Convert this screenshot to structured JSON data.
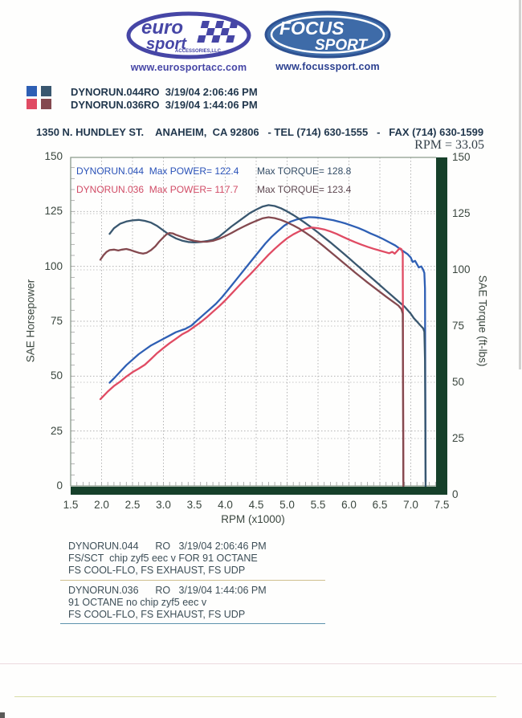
{
  "branding": {
    "eurosport": {
      "word1": "euro",
      "word2": "sport",
      "tagline": "ACCESSORIES,LLC",
      "website": "www.eurosportacc.com",
      "color": "#4646a6"
    },
    "focussport": {
      "word1": "FOCUS",
      "word2": "SPORT",
      "website": "www.focussport.com",
      "color": "#3e6ba8"
    }
  },
  "legend": [
    {
      "label": "DYNORUN.044RO  3/19/04 2:06:46 PM",
      "power_color": "#2e5fb4",
      "torque_color": "#39576f"
    },
    {
      "label": "DYNORUN.036RO  3/19/04 1:44:06 PM",
      "power_color": "#e04b63",
      "torque_color": "#84494f"
    }
  ],
  "address_line": "1350 N. HUNDLEY ST.    ANAHEIM,  CA 92806   - TEL (714) 630-1555   -   FAX (714) 630-1599",
  "rpm_readout": "RPM = 33.05",
  "chart_data": {
    "type": "line",
    "title": "",
    "x_axis": {
      "label": "RPM (x1000)",
      "min": 1.5,
      "max": 7.5
    },
    "y_axis_left": {
      "label": "SAE Horsepower",
      "min": 0,
      "max": 150
    },
    "y_axis_right": {
      "label": "SAE Torque (ft-lbs)",
      "min": 0,
      "max": 150
    },
    "x_ticks": [
      "1.5",
      "2.0",
      "2.5",
      "3.0",
      "3.5",
      "4.0",
      "4.5",
      "5.0",
      "5.5",
      "6.0",
      "6.5",
      "7.0",
      "7.5"
    ],
    "y_ticks": [
      "0",
      "25",
      "50",
      "75",
      "100",
      "125",
      "150"
    ],
    "grid": "dotted",
    "annotations": {
      "run1_power": "DYNORUN.044  Max POWER= 122.4",
      "run1_torque": "Max TORQUE= 128.8",
      "run2_power": "DYNORUN.036  Max POWER= 117.7",
      "run2_torque": "Max TORQUE= 123.4"
    },
    "max_values": {
      "run1_max_power": 122.4,
      "run1_max_torque": 128.8,
      "run2_max_power": 117.7,
      "run2_max_torque": 123.4
    },
    "series": [
      {
        "name": "DYNORUN.044 Power (SAE HP)",
        "axis": "hp",
        "color": "#2e5fb4",
        "points": [
          [
            2.13,
            47
          ],
          [
            2.2,
            49
          ],
          [
            2.3,
            52
          ],
          [
            2.4,
            55
          ],
          [
            2.5,
            57.5
          ],
          [
            2.6,
            60
          ],
          [
            2.7,
            62
          ],
          [
            2.8,
            64
          ],
          [
            2.9,
            65.5
          ],
          [
            3.0,
            67
          ],
          [
            3.1,
            68.5
          ],
          [
            3.2,
            70
          ],
          [
            3.3,
            71
          ],
          [
            3.35,
            71.5
          ],
          [
            3.45,
            73
          ],
          [
            3.55,
            75.5
          ],
          [
            3.65,
            78
          ],
          [
            3.75,
            80.5
          ],
          [
            3.85,
            83
          ],
          [
            3.95,
            86
          ],
          [
            4.05,
            89.5
          ],
          [
            4.15,
            93
          ],
          [
            4.25,
            96.5
          ],
          [
            4.35,
            100
          ],
          [
            4.45,
            103.5
          ],
          [
            4.55,
            107
          ],
          [
            4.65,
            110.5
          ],
          [
            4.75,
            113.5
          ],
          [
            4.85,
            116
          ],
          [
            4.95,
            118.5
          ],
          [
            5.05,
            120.3
          ],
          [
            5.15,
            121.3
          ],
          [
            5.25,
            121.9
          ],
          [
            5.35,
            122.4
          ],
          [
            5.45,
            122.3
          ],
          [
            5.55,
            122
          ],
          [
            5.65,
            121.5
          ],
          [
            5.75,
            121
          ],
          [
            5.85,
            120.3
          ],
          [
            5.95,
            119.5
          ],
          [
            6.05,
            118.5
          ],
          [
            6.15,
            117.5
          ],
          [
            6.25,
            116.3
          ],
          [
            6.35,
            115
          ],
          [
            6.45,
            113.8
          ],
          [
            6.55,
            112.5
          ],
          [
            6.65,
            111
          ],
          [
            6.75,
            109.5
          ],
          [
            6.85,
            107.5
          ],
          [
            6.95,
            105.5
          ],
          [
            7.0,
            104
          ],
          [
            7.03,
            102
          ],
          [
            7.07,
            102.5
          ],
          [
            7.1,
            101
          ],
          [
            7.13,
            99.5
          ],
          [
            7.17,
            100
          ],
          [
            7.2,
            98.5
          ],
          [
            7.22,
            97
          ],
          [
            7.23,
            90
          ],
          [
            7.24,
            2
          ]
        ]
      },
      {
        "name": "DYNORUN.044 Torque (ft-lbs)",
        "axis": "tq",
        "color": "#39576f",
        "points": [
          [
            2.13,
            116
          ],
          [
            2.2,
            118.5
          ],
          [
            2.3,
            120.5
          ],
          [
            2.4,
            121.5
          ],
          [
            2.5,
            122
          ],
          [
            2.6,
            122.2
          ],
          [
            2.7,
            121.8
          ],
          [
            2.8,
            121
          ],
          [
            2.9,
            119.5
          ],
          [
            3.0,
            117.5
          ],
          [
            3.1,
            115.5
          ],
          [
            3.2,
            114
          ],
          [
            3.3,
            113
          ],
          [
            3.4,
            112.4
          ],
          [
            3.5,
            112.2
          ],
          [
            3.6,
            112.4
          ],
          [
            3.7,
            112.8
          ],
          [
            3.8,
            113.4
          ],
          [
            3.9,
            114.8
          ],
          [
            4.0,
            117
          ],
          [
            4.1,
            119.3
          ],
          [
            4.2,
            121.3
          ],
          [
            4.3,
            123.3
          ],
          [
            4.4,
            125.3
          ],
          [
            4.5,
            126.8
          ],
          [
            4.6,
            128.1
          ],
          [
            4.7,
            128.8
          ],
          [
            4.8,
            128.4
          ],
          [
            4.9,
            127.4
          ],
          [
            5.0,
            126
          ],
          [
            5.1,
            124.4
          ],
          [
            5.2,
            122.6
          ],
          [
            5.3,
            120.7
          ],
          [
            5.4,
            118.7
          ],
          [
            5.5,
            116.6
          ],
          [
            5.6,
            114.4
          ],
          [
            5.7,
            112.2
          ],
          [
            5.8,
            109.9
          ],
          [
            5.9,
            107.6
          ],
          [
            6.0,
            105.2
          ],
          [
            6.1,
            102.8
          ],
          [
            6.2,
            100.4
          ],
          [
            6.3,
            98
          ],
          [
            6.4,
            95.6
          ],
          [
            6.5,
            93.2
          ],
          [
            6.6,
            90.8
          ],
          [
            6.7,
            88.4
          ],
          [
            6.8,
            86
          ],
          [
            6.9,
            83.6
          ],
          [
            7.0,
            80.5
          ],
          [
            7.05,
            78.5
          ],
          [
            7.1,
            77
          ],
          [
            7.15,
            75.5
          ],
          [
            7.2,
            74
          ],
          [
            7.22,
            72.5
          ],
          [
            7.23,
            60
          ],
          [
            7.24,
            2
          ]
        ]
      },
      {
        "name": "DYNORUN.036 Power (SAE HP)",
        "axis": "hp",
        "color": "#e04b63",
        "points": [
          [
            1.98,
            39.5
          ],
          [
            2.05,
            41.5
          ],
          [
            2.1,
            43
          ],
          [
            2.2,
            45.5
          ],
          [
            2.3,
            47.5
          ],
          [
            2.4,
            49.8
          ],
          [
            2.5,
            51.8
          ],
          [
            2.6,
            53.4
          ],
          [
            2.7,
            55.2
          ],
          [
            2.8,
            57.8
          ],
          [
            2.9,
            60.5
          ],
          [
            3.0,
            62.8
          ],
          [
            3.1,
            65
          ],
          [
            3.2,
            67
          ],
          [
            3.3,
            69
          ],
          [
            3.4,
            70.5
          ],
          [
            3.5,
            72.5
          ],
          [
            3.6,
            74.5
          ],
          [
            3.7,
            76.8
          ],
          [
            3.8,
            79.3
          ],
          [
            3.9,
            81.8
          ],
          [
            4.0,
            84.5
          ],
          [
            4.1,
            87.5
          ],
          [
            4.2,
            90.5
          ],
          [
            4.3,
            93.5
          ],
          [
            4.4,
            96.3
          ],
          [
            4.5,
            99.3
          ],
          [
            4.6,
            102.3
          ],
          [
            4.7,
            105.3
          ],
          [
            4.8,
            108
          ],
          [
            4.9,
            110.5
          ],
          [
            5.0,
            112.8
          ],
          [
            5.1,
            114.6
          ],
          [
            5.2,
            116
          ],
          [
            5.3,
            117.1
          ],
          [
            5.4,
            117.7
          ],
          [
            5.5,
            117.4
          ],
          [
            5.6,
            116.8
          ],
          [
            5.7,
            115.9
          ],
          [
            5.8,
            114.8
          ],
          [
            5.9,
            113.5
          ],
          [
            6.0,
            112.2
          ],
          [
            6.1,
            111
          ],
          [
            6.2,
            109.9
          ],
          [
            6.3,
            108.9
          ],
          [
            6.4,
            108
          ],
          [
            6.5,
            107.2
          ],
          [
            6.6,
            106.4
          ],
          [
            6.65,
            106
          ],
          [
            6.7,
            106.6
          ],
          [
            6.74,
            105.8
          ],
          [
            6.78,
            107
          ],
          [
            6.82,
            108.3
          ],
          [
            6.85,
            107.8
          ],
          [
            6.87,
            106
          ],
          [
            6.88,
            2
          ]
        ]
      },
      {
        "name": "DYNORUN.036 Torque (ft-lbs)",
        "axis": "tq",
        "color": "#84494f",
        "points": [
          [
            1.98,
            104.5
          ],
          [
            2.03,
            106.5
          ],
          [
            2.08,
            108
          ],
          [
            2.13,
            108.8
          ],
          [
            2.2,
            109
          ],
          [
            2.27,
            108.6
          ],
          [
            2.33,
            109
          ],
          [
            2.4,
            109.3
          ],
          [
            2.47,
            108.8
          ],
          [
            2.53,
            108.2
          ],
          [
            2.6,
            107.6
          ],
          [
            2.67,
            107.2
          ],
          [
            2.73,
            107.6
          ],
          [
            2.8,
            108.8
          ],
          [
            2.87,
            110.5
          ],
          [
            2.93,
            112.5
          ],
          [
            3.0,
            114.5
          ],
          [
            3.05,
            115.8
          ],
          [
            3.1,
            116.4
          ],
          [
            3.15,
            116.2
          ],
          [
            3.2,
            115.6
          ],
          [
            3.3,
            114.6
          ],
          [
            3.4,
            113.6
          ],
          [
            3.5,
            112.9
          ],
          [
            3.6,
            112.5
          ],
          [
            3.7,
            112.5
          ],
          [
            3.8,
            112.9
          ],
          [
            3.9,
            113.8
          ],
          [
            4.0,
            115
          ],
          [
            4.1,
            116.4
          ],
          [
            4.2,
            117.9
          ],
          [
            4.3,
            119.3
          ],
          [
            4.4,
            120.6
          ],
          [
            4.5,
            121.8
          ],
          [
            4.6,
            122.9
          ],
          [
            4.7,
            123.4
          ],
          [
            4.8,
            123
          ],
          [
            4.9,
            122.2
          ],
          [
            5.0,
            121.1
          ],
          [
            5.1,
            119.8
          ],
          [
            5.2,
            118.3
          ],
          [
            5.3,
            116.5
          ],
          [
            5.4,
            114.6
          ],
          [
            5.5,
            112.5
          ],
          [
            5.6,
            110.3
          ],
          [
            5.7,
            108
          ],
          [
            5.8,
            105.7
          ],
          [
            5.9,
            103.4
          ],
          [
            6.0,
            101.1
          ],
          [
            6.1,
            98.8
          ],
          [
            6.2,
            96.6
          ],
          [
            6.3,
            94.4
          ],
          [
            6.4,
            92.3
          ],
          [
            6.5,
            90.2
          ],
          [
            6.6,
            88.1
          ],
          [
            6.7,
            86.1
          ],
          [
            6.8,
            84.1
          ],
          [
            6.85,
            82.5
          ],
          [
            6.87,
            80.5
          ],
          [
            6.88,
            2
          ]
        ]
      }
    ],
    "frame_color": "#8a9a8c",
    "grid_color": "#b3b3b3",
    "bar_color": "#16402a"
  },
  "footer_runs": [
    {
      "title": "DYNORUN.044      RO   3/19/04 2:06:46 PM",
      "line2": "FS/SCT  chip zyf5 eec v FOR 91 OCTANE",
      "line3": "FS COOL-FLO, FS EXHAUST, FS UDP"
    },
    {
      "title": "DYNORUN.036      RO   3/19/04 1:44:06 PM",
      "line2": "91 OCTANE no chip zyf5 eec v",
      "line3": "FS COOL-FLO, FS EXHAUST, FS UDP"
    }
  ]
}
